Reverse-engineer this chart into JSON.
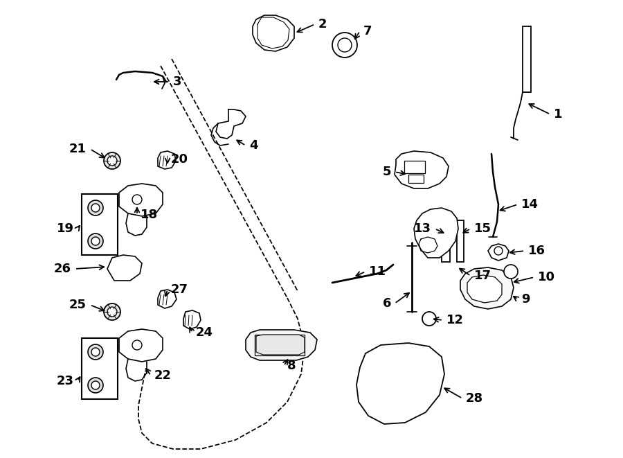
{
  "bg_color": "#ffffff",
  "line_color": "#000000",
  "fig_width": 9.0,
  "fig_height": 6.61,
  "dpi": 100,
  "title_fontsize": 0,
  "label_fontsize": 13,
  "lw": 1.3
}
